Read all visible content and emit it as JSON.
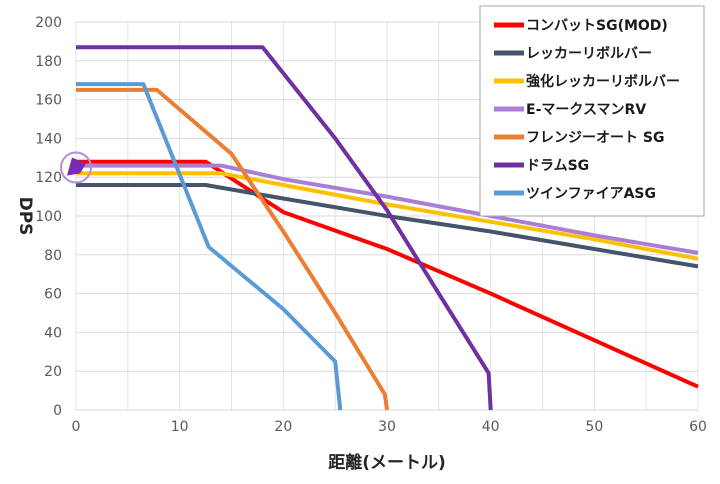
{
  "chart_data": {
    "type": "line",
    "xlabel": "距離(メートル)",
    "ylabel": "DPS",
    "xlim": [
      0,
      60
    ],
    "ylim": [
      0,
      200
    ],
    "x_ticks": [
      0,
      10,
      20,
      30,
      40,
      50,
      60
    ],
    "y_ticks": [
      0,
      20,
      40,
      60,
      80,
      100,
      120,
      140,
      160,
      180,
      200
    ],
    "grid": true,
    "legend_position": "top-right",
    "series": [
      {
        "name": "コンバットSG(MOD)",
        "color": "#ff0000",
        "points": [
          [
            0,
            128
          ],
          [
            12.5,
            128
          ],
          [
            20,
            102
          ],
          [
            30,
            83
          ],
          [
            40,
            60
          ],
          [
            50,
            36
          ],
          [
            60,
            12
          ]
        ]
      },
      {
        "name": "レッカーリボルバー",
        "color": "#44546a",
        "points": [
          [
            0,
            116
          ],
          [
            12.5,
            116
          ],
          [
            20,
            109
          ],
          [
            30,
            100
          ],
          [
            40,
            92
          ],
          [
            50,
            83
          ],
          [
            60,
            74
          ]
        ]
      },
      {
        "name": "強化レッカーリボルバー",
        "color": "#ffc000",
        "points": [
          [
            0,
            122
          ],
          [
            14,
            122
          ],
          [
            20,
            116
          ],
          [
            30,
            106
          ],
          [
            40,
            97
          ],
          [
            50,
            88
          ],
          [
            60,
            78
          ]
        ]
      },
      {
        "name": "E-マークスマンRV",
        "color": "#a97ed6",
        "points": [
          [
            0,
            126
          ],
          [
            14,
            126
          ],
          [
            20,
            119
          ],
          [
            30,
            110
          ],
          [
            40,
            100
          ],
          [
            50,
            90
          ],
          [
            60,
            81
          ]
        ]
      },
      {
        "name": "フレンジーオート SG",
        "color": "#ed7d31",
        "points": [
          [
            0,
            165
          ],
          [
            7.8,
            165
          ],
          [
            15,
            132
          ],
          [
            20,
            92
          ],
          [
            25,
            50
          ],
          [
            29.8,
            8
          ],
          [
            30,
            0
          ]
        ]
      },
      {
        "name": "ドラムSG",
        "color": "#7030a0",
        "points": [
          [
            0,
            187
          ],
          [
            18,
            187
          ],
          [
            25,
            140
          ],
          [
            30,
            103
          ],
          [
            35,
            60
          ],
          [
            39.8,
            19
          ],
          [
            40,
            0
          ]
        ]
      },
      {
        "name": "ツインファイアASG",
        "color": "#5b9bd5",
        "points": [
          [
            0,
            168
          ],
          [
            6.5,
            168
          ],
          [
            12.8,
            84
          ],
          [
            20,
            52
          ],
          [
            25,
            25
          ],
          [
            25.5,
            0
          ]
        ]
      }
    ]
  },
  "marker": {
    "x": 0,
    "y": 125,
    "color": "#7b2ab5"
  }
}
